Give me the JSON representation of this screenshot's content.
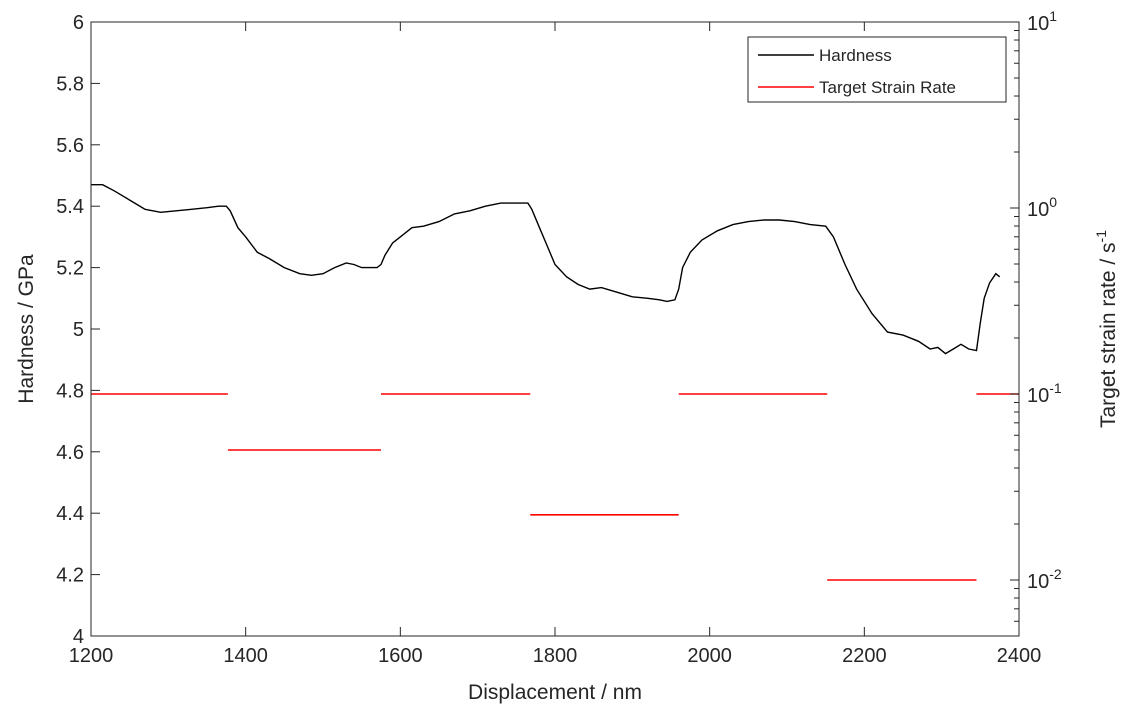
{
  "chart_data": {
    "type": "line",
    "xlabel": "Displacement / nm",
    "ylabel": "Hardness / GPa",
    "y2label": "Target strain rate / s",
    "y2label_sup": "-1",
    "xlim": [
      1200,
      2400
    ],
    "ylim": [
      4,
      6
    ],
    "y2lim": [
      0.005,
      10
    ],
    "y2scale": "log",
    "xticks": [
      1200,
      1400,
      1600,
      1800,
      2000,
      2200,
      2400
    ],
    "xtick_labels": [
      "1200",
      "1400",
      "1600",
      "1800",
      "2000",
      "2200",
      "2400"
    ],
    "yticks": [
      4,
      4.2,
      4.4,
      4.6,
      4.8,
      5,
      5.2,
      5.4,
      5.6,
      5.8,
      6
    ],
    "ytick_labels": [
      "4",
      "4.2",
      "4.4",
      "4.6",
      "4.8",
      "5",
      "5.2",
      "5.4",
      "5.6",
      "5.8",
      "6"
    ],
    "y2ticks": [
      {
        "value": 0.01,
        "base": "10",
        "exp": "-2"
      },
      {
        "value": 0.1,
        "base": "10",
        "exp": "-1"
      },
      {
        "value": 1,
        "base": "10",
        "exp": "0"
      },
      {
        "value": 10,
        "base": "10",
        "exp": "1"
      }
    ],
    "grid": false,
    "legend_position": "top-right",
    "colors": {
      "hardness": "#000000",
      "strain_rate": "#ff0000",
      "axes": "#262626"
    },
    "series": [
      {
        "name": "Hardness",
        "axis": "left",
        "x": [
          1200,
          1215,
          1230,
          1250,
          1270,
          1290,
          1310,
          1330,
          1350,
          1365,
          1375,
          1380,
          1390,
          1400,
          1415,
          1430,
          1450,
          1470,
          1485,
          1500,
          1515,
          1530,
          1540,
          1550,
          1560,
          1570,
          1575,
          1580,
          1590,
          1600,
          1615,
          1630,
          1650,
          1670,
          1690,
          1710,
          1730,
          1750,
          1765,
          1770,
          1780,
          1790,
          1800,
          1815,
          1830,
          1845,
          1860,
          1880,
          1900,
          1920,
          1935,
          1945,
          1955,
          1960,
          1965,
          1975,
          1990,
          2010,
          2030,
          2050,
          2070,
          2090,
          2110,
          2130,
          2150,
          2160,
          2175,
          2190,
          2210,
          2230,
          2250,
          2270,
          2285,
          2295,
          2305,
          2315,
          2325,
          2335,
          2345,
          2350,
          2355,
          2362,
          2370,
          2375
        ],
        "y": [
          5.47,
          5.47,
          5.45,
          5.42,
          5.39,
          5.38,
          5.385,
          5.39,
          5.395,
          5.4,
          5.4,
          5.385,
          5.33,
          5.3,
          5.25,
          5.23,
          5.2,
          5.18,
          5.175,
          5.18,
          5.2,
          5.215,
          5.21,
          5.2,
          5.2,
          5.2,
          5.21,
          5.24,
          5.28,
          5.3,
          5.33,
          5.335,
          5.35,
          5.375,
          5.385,
          5.4,
          5.41,
          5.41,
          5.41,
          5.39,
          5.33,
          5.27,
          5.21,
          5.17,
          5.145,
          5.13,
          5.135,
          5.12,
          5.105,
          5.1,
          5.095,
          5.09,
          5.095,
          5.13,
          5.2,
          5.25,
          5.29,
          5.32,
          5.34,
          5.35,
          5.355,
          5.355,
          5.35,
          5.34,
          5.335,
          5.3,
          5.21,
          5.13,
          5.05,
          4.99,
          4.98,
          4.96,
          4.935,
          4.94,
          4.92,
          4.935,
          4.95,
          4.935,
          4.93,
          5.02,
          5.1,
          5.15,
          5.18,
          5.17
        ]
      },
      {
        "name": "Target Strain Rate",
        "axis": "right",
        "segments": [
          {
            "x_start": 1200,
            "x_end": 1377,
            "rate": 0.1
          },
          {
            "x_start": 1377,
            "x_end": 1575,
            "rate": 0.05
          },
          {
            "x_start": 1575,
            "x_end": 1768,
            "rate": 0.1
          },
          {
            "x_start": 1768,
            "x_end": 1960,
            "rate": 0.0224
          },
          {
            "x_start": 1960,
            "x_end": 2152,
            "rate": 0.1
          },
          {
            "x_start": 2152,
            "x_end": 2345,
            "rate": 0.01
          },
          {
            "x_start": 2345,
            "x_end": 2400,
            "rate": 0.1
          }
        ]
      }
    ]
  }
}
